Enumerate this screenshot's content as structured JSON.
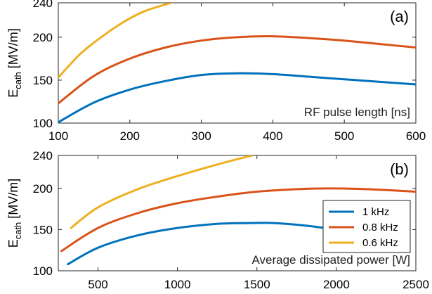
{
  "chart_data": [
    {
      "type": "line",
      "panel_tag": "(a)",
      "ylabel_main": "E",
      "ylabel_sub": "cath",
      "ylabel_unit": "[MV/m]",
      "xlabel": "RF pulse length [ns]",
      "xlim": [
        100,
        600
      ],
      "ylim": [
        100,
        240
      ],
      "xticks": [
        100,
        200,
        300,
        400,
        500,
        600
      ],
      "yticks": [
        100,
        150,
        200,
        240
      ],
      "series": [
        {
          "color": "#0072BD",
          "x": [
            100,
            150,
            200,
            250,
            300,
            350,
            400,
            450,
            500,
            550,
            600
          ],
          "y": [
            101,
            124,
            139,
            149,
            156,
            158,
            157,
            154,
            151,
            148,
            145
          ]
        },
        {
          "color": "#D95319",
          "x": [
            100,
            150,
            200,
            250,
            300,
            350,
            400,
            450,
            500,
            550,
            600
          ],
          "y": [
            123,
            155,
            175,
            188,
            196,
            200,
            201,
            199,
            196,
            192,
            188
          ]
        },
        {
          "color": "#EDB120",
          "x": [
            100,
            130,
            160,
            190,
            220,
            258
          ],
          "y": [
            153,
            180,
            200,
            217,
            230,
            240
          ]
        }
      ]
    },
    {
      "type": "line",
      "panel_tag": "(b)",
      "ylabel_main": "E",
      "ylabel_sub": "cath",
      "ylabel_unit": "[MV/m]",
      "xlabel": "Average dissipated power [W]",
      "xlim": [
        250,
        2500
      ],
      "ylim": [
        100,
        240
      ],
      "xticks": [
        500,
        1000,
        1500,
        2000,
        2500
      ],
      "yticks": [
        100,
        150,
        200,
        240
      ],
      "series": [
        {
          "name": "1 kHz",
          "color": "#0072BD",
          "x": [
            310,
            500,
            750,
            1000,
            1250,
            1450,
            1600,
            1800,
            2000
          ],
          "y": [
            108,
            128,
            143,
            152,
            157,
            158,
            158,
            155,
            150
          ]
        },
        {
          "name": "0.8 kHz",
          "color": "#D95319",
          "x": [
            270,
            500,
            750,
            1000,
            1250,
            1500,
            1750,
            1950,
            2200,
            2500
          ],
          "y": [
            124,
            152,
            170,
            182,
            190,
            196,
            199,
            200,
            199,
            196
          ]
        },
        {
          "name": "0.6 kHz",
          "color": "#EDB120",
          "x": [
            330,
            500,
            750,
            1000,
            1250,
            1470
          ],
          "y": [
            152,
            177,
            199,
            215,
            229,
            240
          ]
        }
      ],
      "legend": {
        "placement": "lower-right",
        "entries": [
          "1 kHz",
          "0.8 kHz",
          "0.6 kHz"
        ]
      }
    }
  ]
}
